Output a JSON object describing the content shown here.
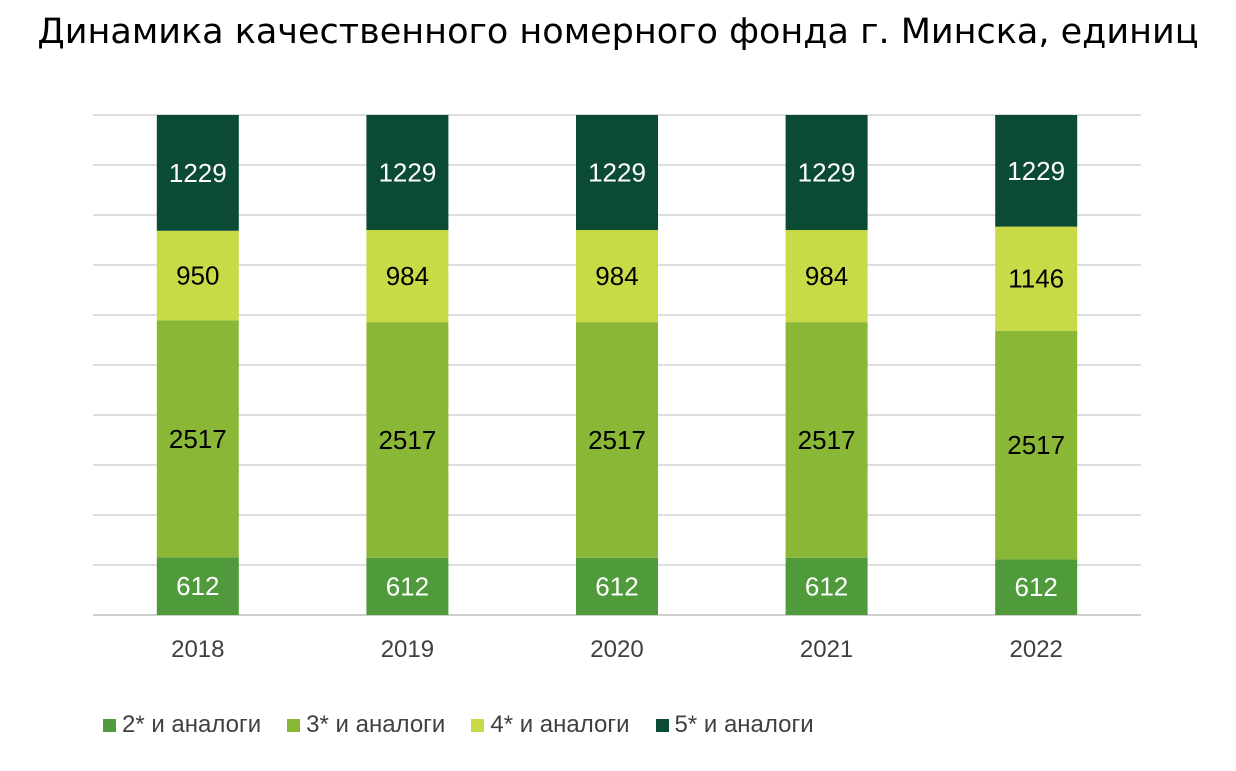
{
  "chart_data": {
    "type": "bar",
    "stacked": true,
    "title": "Динамика качественного номерного фонда г. Минска, единиц",
    "categories": [
      "2018",
      "2019",
      "2020",
      "2021",
      "2022"
    ],
    "series": [
      {
        "name": "2* и аналоги",
        "color": "#4f9a3a",
        "label_color": "#ffffff",
        "values": [
          612,
          612,
          612,
          612,
          612
        ]
      },
      {
        "name": "3* и аналоги",
        "color": "#8ab836",
        "label_color": "#000000",
        "values": [
          2517,
          2517,
          2517,
          2517,
          2517
        ]
      },
      {
        "name": "4* и аналоги",
        "color": "#c9da47",
        "label_color": "#000000",
        "values": [
          950,
          984,
          984,
          984,
          1146
        ]
      },
      {
        "name": "5* и аналоги",
        "color": "#0b4a33",
        "label_color": "#ffffff",
        "values": [
          1229,
          1229,
          1229,
          1229,
          1229
        ]
      }
    ],
    "y_axis_labels_shown": false,
    "grid": true,
    "legend_position": "bottom"
  }
}
